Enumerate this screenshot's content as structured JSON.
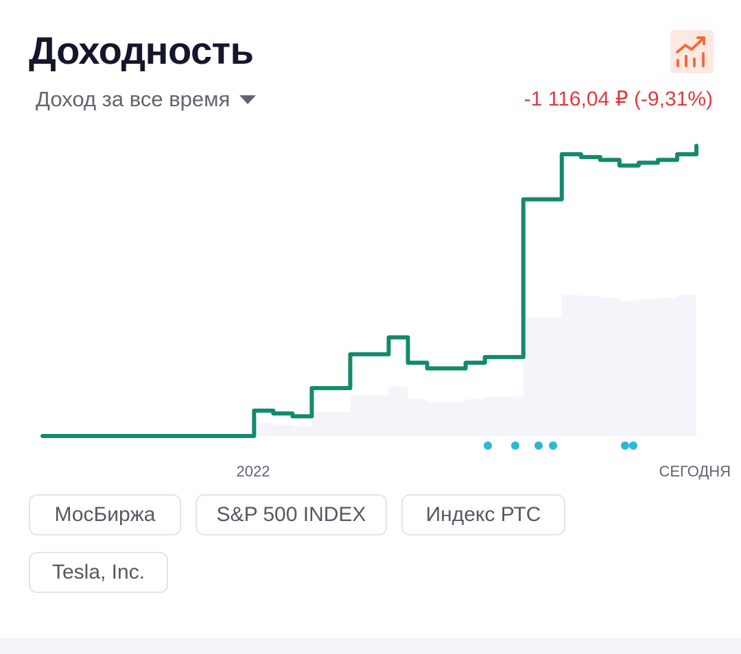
{
  "header": {
    "title": "Доходность",
    "chart_icon": "growth-chart-icon"
  },
  "period_select": {
    "label": "Доход за все время",
    "icon": "caret-down-icon"
  },
  "income": {
    "value": "-1 116,04 ₽ (-9,31%)",
    "color": "#e0393e"
  },
  "chart_data": {
    "type": "line",
    "x_tick_labels": [
      "2022",
      "СЕГОДНЯ"
    ],
    "grid": false,
    "legend": "none",
    "series_color": "#138a6b",
    "benchmark_area_color": "#f4f4fa",
    "event_marker_color": "#2cb8d8",
    "event_marker_count": 7,
    "series": [
      {
        "relative_values": [
          0,
          0,
          0,
          0,
          0,
          0,
          0,
          0,
          0,
          0,
          0,
          0.09,
          0.08,
          0.07,
          0.17,
          0.17,
          0.29,
          0.29,
          0.35,
          0.26,
          0.24,
          0.24,
          0.26,
          0.28,
          0.28,
          0.84,
          0.84,
          1.0,
          0.99,
          0.98,
          0.96,
          0.97,
          0.98,
          1.0,
          1.03
        ]
      }
    ]
  },
  "benchmarks": [
    {
      "label": "МосБиржа"
    },
    {
      "label": "S&P 500 INDEX"
    },
    {
      "label": "Индекс РТС"
    },
    {
      "label": "Tesla, Inc."
    }
  ],
  "colors": {
    "title": "#15162c",
    "accent": "#f26b3a",
    "chip_border": "#e3e4e8",
    "muted_text": "#606470"
  }
}
